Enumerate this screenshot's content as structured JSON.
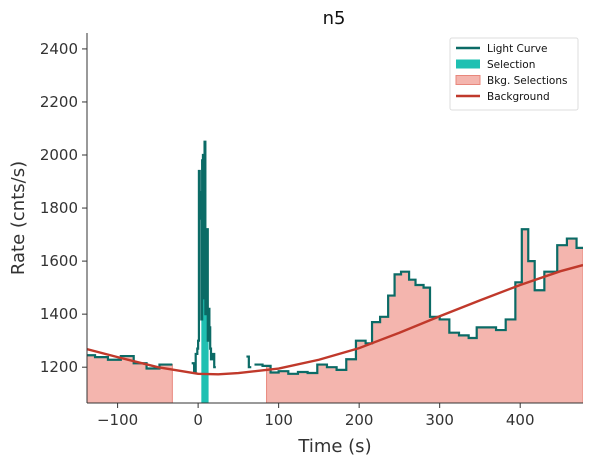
{
  "chart_data": {
    "type": "line",
    "title": "n5",
    "xlabel": "Time (s)",
    "ylabel": "Rate (cnts/s)",
    "xlim": [
      -138,
      478
    ],
    "ylim": [
      1065,
      2460
    ],
    "xticks": [
      -100,
      0,
      100,
      200,
      300,
      400
    ],
    "xtick_labels": [
      "−100",
      "0",
      "100",
      "200",
      "300",
      "400"
    ],
    "yticks": [
      1200,
      1400,
      1600,
      1800,
      2000,
      2200,
      2400
    ],
    "ytick_labels": [
      "1200",
      "1400",
      "1600",
      "1800",
      "2000",
      "2200",
      "2400"
    ],
    "grid": false,
    "legend_position": "top-right",
    "legend": [
      {
        "label": "Light Curve",
        "kind": "line",
        "color": "#0b6b66"
      },
      {
        "label": "Selection",
        "kind": "patch",
        "color": "#1fc0b2"
      },
      {
        "label": "Bkg. Selections",
        "kind": "patch",
        "color": "#f4b5ae"
      },
      {
        "label": "Background",
        "kind": "line",
        "color": "#c0392b"
      }
    ],
    "colors": {
      "light_curve": "#0b6b66",
      "selection": "#1fc0b2",
      "bkg_fill": "#f4b5ae",
      "bkg_edge": "#e8877c",
      "background": "#c0392b",
      "axes": "#333333"
    },
    "selection_interval": [
      4,
      13
    ],
    "bkg_intervals": [
      [
        -138,
        -32
      ],
      [
        85,
        478
      ]
    ],
    "background_model": {
      "x": [
        -138,
        -100,
        -50,
        0,
        25,
        50,
        100,
        150,
        200,
        250,
        300,
        350,
        400,
        450,
        478
      ],
      "y": [
        1268,
        1238,
        1200,
        1175,
        1173,
        1178,
        1195,
        1228,
        1272,
        1330,
        1392,
        1452,
        1510,
        1562,
        1585
      ]
    },
    "light_curve_segments": [
      {
        "edges": [
          -138,
          -128,
          -112,
          -96,
          -80,
          -64,
          -48,
          -32
        ],
        "values": [
          1245,
          1238,
          1228,
          1242,
          1215,
          1195,
          1210
        ]
      },
      {
        "edges": [
          -8,
          -5,
          -3,
          -1,
          0,
          1,
          2,
          3,
          4,
          5,
          6,
          7,
          8,
          9,
          10,
          11,
          12,
          13,
          14,
          15,
          16,
          18,
          20,
          22
        ],
        "values": [
          1215,
          1180,
          1250,
          1270,
          1300,
          1940,
          1760,
          1860,
          1380,
          1980,
          2000,
          1460,
          2050,
          1400,
          1580,
          1720,
          1300,
          1420,
          1350,
          1270,
          1230,
          1250,
          1200
        ]
      },
      {
        "edges": [
          60,
          63,
          66
        ],
        "values": [
          1240,
          1200
        ]
      },
      {
        "edges": [
          70,
          80,
          90,
          100,
          112,
          124,
          136,
          148,
          160,
          172,
          184,
          196,
          208,
          216,
          226,
          236,
          244,
          252,
          262,
          270,
          280,
          288,
          300,
          312,
          324,
          336,
          346,
          358,
          370,
          382,
          394,
          402,
          410,
          418,
          430,
          446,
          458,
          470,
          478
        ],
        "values": [
          1210,
          1205,
          1180,
          1185,
          1175,
          1182,
          1178,
          1210,
          1200,
          1190,
          1230,
          1300,
          1290,
          1370,
          1390,
          1470,
          1550,
          1560,
          1530,
          1510,
          1500,
          1390,
          1380,
          1330,
          1320,
          1310,
          1350,
          1350,
          1340,
          1380,
          1520,
          1720,
          1600,
          1490,
          1560,
          1660,
          1685,
          1650
        ]
      }
    ]
  }
}
